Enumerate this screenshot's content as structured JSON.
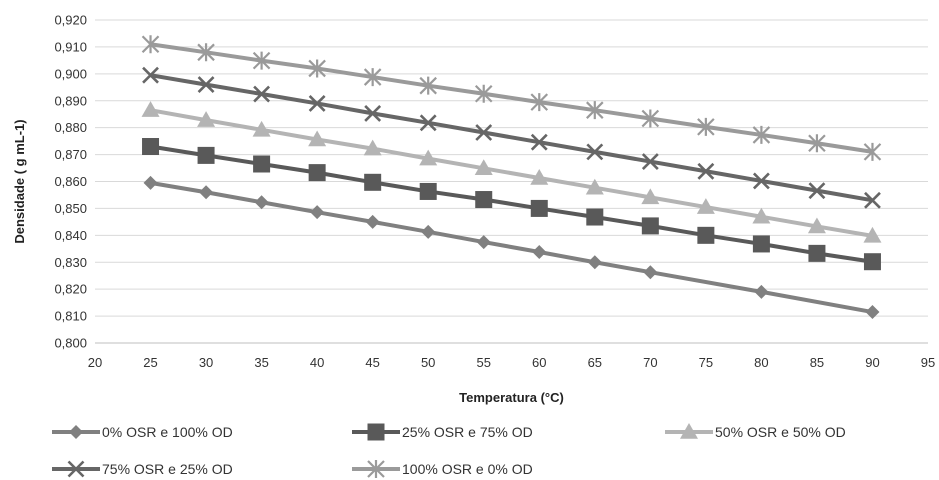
{
  "chart_data": {
    "type": "line",
    "title": "",
    "xlabel": "Temperatura (°C)",
    "ylabel": "Densidade ( g mL-1)",
    "xlim": [
      20,
      95
    ],
    "ylim": [
      0.8,
      0.92
    ],
    "x_ticks": [
      "20",
      "25",
      "30",
      "35",
      "40",
      "45",
      "50",
      "55",
      "60",
      "65",
      "70",
      "75",
      "80",
      "85",
      "90",
      "95"
    ],
    "y_ticks": [
      "0,800",
      "0,810",
      "0,820",
      "0,830",
      "0,840",
      "0,850",
      "0,860",
      "0,870",
      "0,880",
      "0,890",
      "0,900",
      "0,910",
      "0,920"
    ],
    "grid": "horizontal",
    "legend_position": "bottom",
    "x": [
      25,
      30,
      35,
      40,
      45,
      50,
      55,
      60,
      65,
      70,
      75,
      80,
      85,
      90
    ],
    "series": [
      {
        "name": "0% OSR e 100% OD",
        "marker": "diamond",
        "color": "#808080",
        "x": [
          25,
          30,
          35,
          40,
          45,
          50,
          55,
          60,
          65,
          70,
          80,
          90
        ],
        "values": [
          0.8595,
          0.856,
          0.8523,
          0.8486,
          0.845,
          0.8413,
          0.8375,
          0.8338,
          0.83,
          0.8263,
          0.819,
          0.8115
        ]
      },
      {
        "name": "25% OSR e 75% OD",
        "marker": "square",
        "color": "#595959",
        "x": [
          25,
          30,
          35,
          40,
          45,
          50,
          55,
          60,
          65,
          70,
          75,
          80,
          85,
          90
        ],
        "values": [
          0.873,
          0.8697,
          0.8665,
          0.8633,
          0.8597,
          0.8563,
          0.8533,
          0.85,
          0.8468,
          0.8435,
          0.84,
          0.8368,
          0.8333,
          0.8302
        ]
      },
      {
        "name": "50% OSR e 50% OD",
        "marker": "triangle",
        "color": "#b4b4b4",
        "x": [
          25,
          30,
          35,
          40,
          45,
          50,
          55,
          60,
          65,
          70,
          75,
          80,
          85,
          90
        ],
        "values": [
          0.8865,
          0.8828,
          0.8792,
          0.8756,
          0.8722,
          0.8685,
          0.8649,
          0.8613,
          0.8577,
          0.8541,
          0.8505,
          0.8469,
          0.8433,
          0.8398
        ]
      },
      {
        "name": "75% OSR e 25% OD",
        "marker": "x",
        "color": "#666666",
        "x": [
          25,
          30,
          35,
          40,
          45,
          50,
          55,
          60,
          65,
          70,
          75,
          80,
          85,
          90
        ],
        "values": [
          0.8995,
          0.896,
          0.8925,
          0.889,
          0.8853,
          0.8818,
          0.8782,
          0.8746,
          0.871,
          0.8674,
          0.8638,
          0.8602,
          0.8566,
          0.853
        ]
      },
      {
        "name": "100% OSR e 0% OD",
        "marker": "asterisk",
        "color": "#9a9a9a",
        "x": [
          25,
          30,
          35,
          40,
          45,
          50,
          55,
          60,
          65,
          70,
          75,
          80,
          85,
          90
        ],
        "values": [
          0.911,
          0.908,
          0.9049,
          0.902,
          0.8988,
          0.8956,
          0.8926,
          0.8895,
          0.8865,
          0.8834,
          0.8803,
          0.8773,
          0.8742,
          0.871
        ]
      }
    ]
  }
}
